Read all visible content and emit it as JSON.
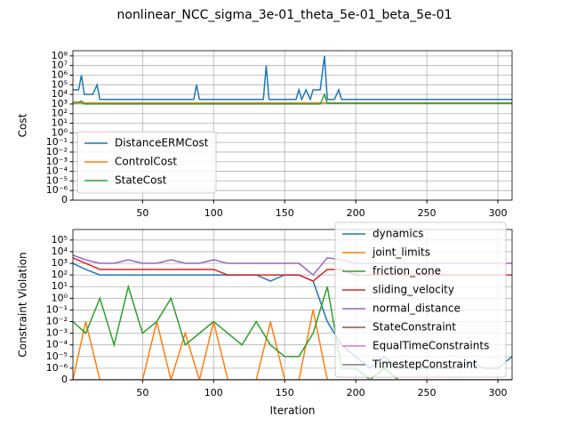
{
  "title": "nonlinear_NCC_sigma_3e-01_theta_5e-01_beta_5e-01",
  "chart_data": [
    {
      "type": "line",
      "y_label": "Cost",
      "yscale": "symlog",
      "grid": true,
      "legend": "lower left",
      "xlim": [
        1,
        310
      ],
      "xticks": [
        50,
        100,
        150,
        200,
        250,
        300
      ],
      "ylim": [
        0,
        350000000
      ],
      "yticks": [
        0,
        {
          "value": 1e-06,
          "label": "10⁻⁶"
        },
        {
          "value": 1e-05,
          "label": "10⁻⁵"
        },
        {
          "value": 0.0001,
          "label": "10⁻⁴"
        },
        {
          "value": 0.001,
          "label": "10⁻³"
        },
        {
          "value": 0.01,
          "label": "10⁻²"
        },
        {
          "value": 0.1,
          "label": "10⁻¹"
        },
        {
          "value": 1,
          "label": "10⁰"
        },
        {
          "value": 10,
          "label": "10¹"
        },
        {
          "value": 100,
          "label": "10²"
        },
        {
          "value": 1000,
          "label": "10³"
        },
        {
          "value": 10000,
          "label": "10⁴"
        },
        {
          "value": 100000,
          "label": "10⁵"
        },
        {
          "value": 1000000,
          "label": "10⁶"
        },
        {
          "value": 10000000,
          "label": "10⁷"
        },
        {
          "value": 100000000,
          "label": "10⁸"
        }
      ],
      "x": [
        1,
        5,
        7,
        9,
        15,
        18,
        20,
        30,
        40,
        50,
        60,
        70,
        80,
        86,
        88,
        90,
        100,
        110,
        120,
        130,
        135,
        137,
        139,
        150,
        158,
        160,
        162,
        165,
        168,
        170,
        175,
        178,
        180,
        185,
        188,
        190,
        200,
        250,
        310
      ],
      "series": [
        {
          "name": "DistanceERMCost",
          "color": "#1f77b4",
          "values": [
            30000,
            30000,
            1000000,
            10000,
            10000,
            100000,
            3000,
            3000,
            3000,
            3000,
            3000,
            3000,
            3000,
            3000,
            100000,
            3000,
            3000,
            3000,
            3000,
            3000,
            3000,
            10000000,
            3000,
            3000,
            3000,
            30000,
            3000,
            30000,
            3000,
            30000,
            30000,
            100000000,
            3000,
            3000,
            30000,
            3000,
            3000,
            3000,
            3000
          ]
        },
        {
          "name": "ControlCost",
          "color": "#ff7f0e",
          "values": [
            1300,
            1300,
            1300,
            1300,
            1300,
            1300,
            1300,
            1300,
            1300,
            1300,
            1300,
            1300,
            1300,
            1300,
            1300,
            1300,
            1300,
            1300,
            1300,
            1300,
            1300,
            1300,
            1300,
            1300,
            1300,
            1300,
            1300,
            1300,
            1300,
            1300,
            1300,
            1300,
            1300,
            1300,
            1300,
            1300,
            1300,
            1300,
            1300
          ]
        },
        {
          "name": "StateCost",
          "color": "#2ca02c",
          "values": [
            1500,
            1500,
            2000,
            1000,
            1000,
            1000,
            1000,
            1000,
            1000,
            1000,
            1000,
            1000,
            1000,
            1000,
            1000,
            1000,
            1000,
            1000,
            1000,
            1000,
            1000,
            1000,
            1000,
            1000,
            1000,
            1000,
            1000,
            1000,
            1000,
            1000,
            1000,
            10000,
            1200,
            1200,
            1200,
            1200,
            1200,
            1200,
            1200
          ]
        }
      ]
    },
    {
      "type": "line",
      "x_label": "Iteration",
      "y_label": "Constraint Violation",
      "yscale": "symlog",
      "grid": true,
      "legend": "upper right",
      "xlim": [
        1,
        310
      ],
      "xticks": [
        50,
        100,
        150,
        200,
        250,
        300
      ],
      "ylim": [
        0,
        800000
      ],
      "yticks": [
        0,
        {
          "value": 1e-06,
          "label": "10⁻⁶"
        },
        {
          "value": 1e-05,
          "label": "10⁻⁵"
        },
        {
          "value": 0.0001,
          "label": "10⁻⁴"
        },
        {
          "value": 0.001,
          "label": "10⁻³"
        },
        {
          "value": 0.01,
          "label": "10⁻²"
        },
        {
          "value": 0.1,
          "label": "10⁻¹"
        },
        {
          "value": 1,
          "label": "10⁰"
        },
        {
          "value": 10,
          "label": "10¹"
        },
        {
          "value": 100,
          "label": "10²"
        },
        {
          "value": 1000,
          "label": "10³"
        },
        {
          "value": 10000,
          "label": "10⁴"
        },
        {
          "value": 100000,
          "label": "10⁵"
        }
      ],
      "x": [
        1,
        10,
        20,
        30,
        40,
        50,
        60,
        70,
        80,
        90,
        100,
        110,
        120,
        130,
        140,
        150,
        160,
        170,
        180,
        190,
        200,
        210,
        220,
        230,
        240,
        250,
        260,
        270,
        280,
        290,
        300,
        310
      ],
      "series": [
        {
          "name": "dynamics",
          "color": "#1f77b4",
          "values": [
            1000,
            300,
            100,
            100,
            100,
            100,
            100,
            100,
            100,
            100,
            100,
            100,
            100,
            100,
            30,
            100,
            100,
            30,
            0.01,
            0.0001,
            1e-05,
            1e-06,
            1e-05,
            1e-06,
            1e-06,
            1e-06,
            1e-06,
            1e-06,
            3e-06,
            1e-06,
            1e-06,
            1e-05
          ]
        },
        {
          "name": "joint_limits",
          "color": "#ff7f0e",
          "values": [
            0,
            0.01,
            0,
            0,
            0,
            0,
            0.01,
            0,
            0.001,
            0,
            0.01,
            0,
            0,
            0,
            0.01,
            0,
            0,
            0.1,
            0,
            0,
            0,
            0,
            0,
            0,
            0,
            0,
            0,
            0,
            0,
            0,
            0,
            0
          ]
        },
        {
          "name": "friction_cone",
          "color": "#2ca02c",
          "values": [
            0.01,
            0.001,
            1,
            0.0001,
            10,
            0.001,
            0.01,
            1,
            0.0001,
            0.001,
            0.01,
            0.001,
            0.0001,
            0.01,
            0.0001,
            1e-05,
            1e-05,
            0.001,
            10,
            1e-06,
            1e-06,
            0,
            1e-06,
            0,
            0,
            0,
            0,
            0,
            0,
            0,
            0,
            0
          ]
        },
        {
          "name": "sliding_velocity",
          "color": "#d62728",
          "values": [
            3000,
            1000,
            300,
            300,
            300,
            300,
            300,
            300,
            300,
            300,
            300,
            100,
            100,
            100,
            100,
            100,
            100,
            30,
            300,
            300,
            100,
            100,
            100,
            100,
            100,
            100,
            100,
            100,
            100,
            100,
            100,
            100
          ]
        },
        {
          "name": "normal_distance",
          "color": "#9467bd",
          "values": [
            5000,
            2000,
            1000,
            1000,
            2000,
            1000,
            1000,
            2000,
            1000,
            1000,
            2000,
            1000,
            1000,
            1000,
            1000,
            1000,
            1000,
            100,
            3000,
            2000,
            1000,
            1000,
            1000,
            1000,
            1000,
            1000,
            1000,
            1000,
            1000,
            1000,
            1000,
            1000
          ]
        },
        {
          "name": "StateConstraint",
          "color": "#8c564b",
          "values": [
            0,
            0,
            0,
            0,
            0,
            0,
            0,
            0,
            0,
            0,
            0,
            0,
            0,
            0,
            0,
            0,
            0,
            0,
            0,
            0,
            0,
            0,
            0,
            0,
            0,
            0,
            0,
            0,
            0,
            0,
            0,
            0
          ]
        },
        {
          "name": "EqualTimeConstraints",
          "color": "#e377c2",
          "values": [
            0,
            0,
            0,
            0,
            0,
            0,
            0,
            0,
            0,
            0,
            0,
            0,
            0,
            0,
            0,
            0,
            0,
            0,
            0,
            0,
            0,
            0,
            0,
            0,
            0,
            0,
            0,
            0,
            0,
            0,
            0,
            0
          ]
        },
        {
          "name": "TimestepConstraint",
          "color": "#7f7f7f",
          "values": [
            0,
            0,
            0,
            0,
            0,
            0,
            0,
            0,
            0,
            0,
            0,
            0,
            0,
            0,
            0,
            0,
            0,
            0,
            0,
            0,
            0,
            0,
            0,
            0,
            0,
            0,
            0,
            0,
            0,
            0,
            0,
            0
          ]
        }
      ]
    }
  ]
}
